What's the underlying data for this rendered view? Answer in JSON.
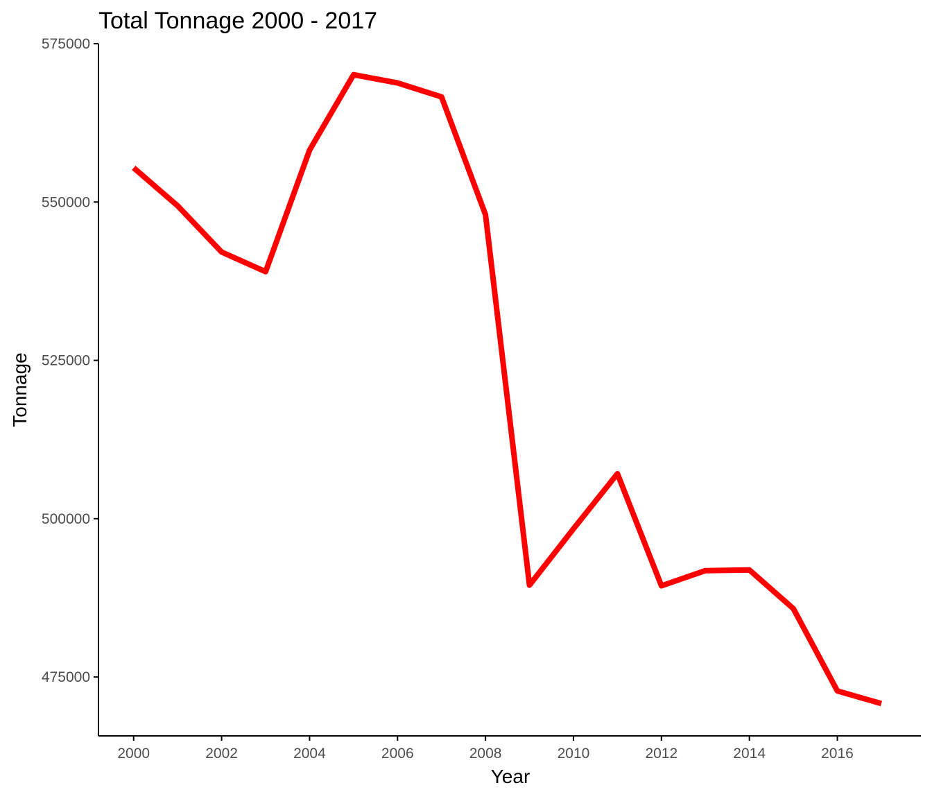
{
  "chart_data": {
    "type": "line",
    "title": "Total Tonnage 2000 - 2017",
    "xlabel": "Year",
    "ylabel": "Tonnage",
    "x": [
      2000,
      2001,
      2002,
      2003,
      2004,
      2005,
      2006,
      2007,
      2008,
      2009,
      2010,
      2011,
      2012,
      2013,
      2014,
      2015,
      2016,
      2017
    ],
    "series": [
      {
        "name": "",
        "color": "#ff0000",
        "values": [
          555400,
          549400,
          542100,
          539000,
          558200,
          570100,
          568800,
          566600,
          548000,
          489500,
          498400,
          507100,
          489400,
          491800,
          491900,
          485800,
          472800,
          470800
        ]
      }
    ],
    "xticks": [
      2000,
      2002,
      2004,
      2006,
      2008,
      2010,
      2012,
      2014,
      2016
    ],
    "yticks": [
      475000,
      500000,
      525000,
      550000,
      575000
    ],
    "xlim": [
      1999.2,
      2017.9
    ],
    "ylim": [
      465700,
      575000
    ],
    "grid": false,
    "legend": "none"
  }
}
